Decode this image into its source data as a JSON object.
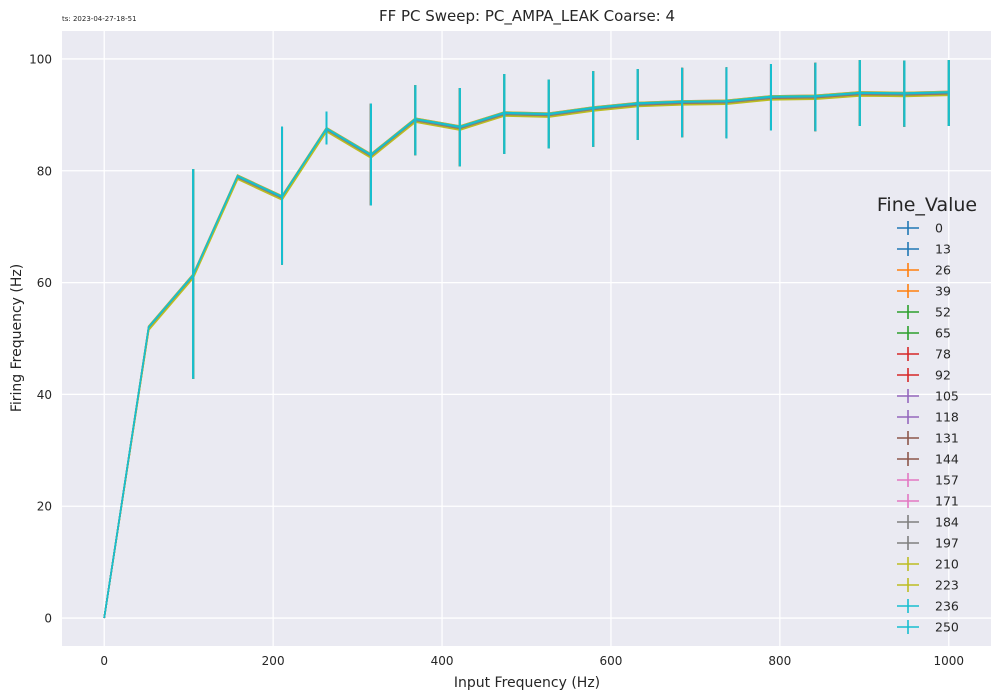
{
  "timestamp": "ts: 2023-04-27-18-51",
  "colors": {
    "background": "#eaeaf2",
    "grid": "#ffffff",
    "palette": [
      "#1f77b4",
      "#ff7f0e",
      "#2ca02c",
      "#d62728",
      "#9467bd",
      "#8c564b",
      "#e377c2",
      "#7f7f7f",
      "#bcbd22",
      "#17becf"
    ]
  },
  "chart_data": {
    "type": "line",
    "title": "FF PC Sweep: PC_AMPA_LEAK Coarse: 4",
    "xlabel": "Input Frequency (Hz)",
    "ylabel": "Firing Frequency (Hz)",
    "xlim": [
      -50,
      1050
    ],
    "ylim": [
      -5,
      105
    ],
    "xticks": [
      0,
      200,
      400,
      600,
      800,
      1000
    ],
    "yticks": [
      0,
      20,
      40,
      60,
      80,
      100
    ],
    "grid": true,
    "legend": {
      "title": "Fine_Value",
      "placement": "right"
    },
    "x": [
      0,
      52.6,
      105.3,
      157.9,
      210.5,
      263.2,
      315.8,
      368.4,
      421.1,
      473.7,
      526.3,
      578.9,
      631.6,
      684.2,
      736.8,
      789.5,
      842.1,
      894.7,
      947.4,
      1000
    ],
    "mean": [
      0,
      52,
      61.3,
      79,
      75.3,
      87.5,
      82.8,
      89.2,
      87.8,
      90.3,
      90.1,
      91.2,
      92,
      92.3,
      92.4,
      93.2,
      93.3,
      93.9,
      93.8,
      94
    ],
    "err_low": [
      0,
      52,
      42.8,
      79,
      63.2,
      84.7,
      73.8,
      82.8,
      80.8,
      83,
      84,
      84.3,
      85.5,
      86,
      85.8,
      87.2,
      87.1,
      88,
      87.9,
      88
    ],
    "err_high": [
      0,
      52,
      80.3,
      79,
      87.9,
      90.6,
      92,
      95.3,
      94.8,
      97.3,
      96.3,
      97.8,
      98.2,
      98.4,
      98.5,
      99.1,
      99.3,
      99.8,
      99.7,
      99.8
    ],
    "series": [
      {
        "name": "0",
        "color_index": 0,
        "offset": -0.2
      },
      {
        "name": "13",
        "color_index": 0,
        "offset": 0
      },
      {
        "name": "26",
        "color_index": 1,
        "offset": -0.4
      },
      {
        "name": "39",
        "color_index": 1,
        "offset": -0.1
      },
      {
        "name": "52",
        "color_index": 2,
        "offset": 0.1
      },
      {
        "name": "65",
        "color_index": 2,
        "offset": -0.2
      },
      {
        "name": "78",
        "color_index": 3,
        "offset": -0.3
      },
      {
        "name": "92",
        "color_index": 3,
        "offset": 0
      },
      {
        "name": "105",
        "color_index": 4,
        "offset": 0.1
      },
      {
        "name": "118",
        "color_index": 4,
        "offset": -0.1
      },
      {
        "name": "131",
        "color_index": 5,
        "offset": -0.2
      },
      {
        "name": "144",
        "color_index": 5,
        "offset": 0
      },
      {
        "name": "157",
        "color_index": 6,
        "offset": 0.2
      },
      {
        "name": "171",
        "color_index": 6,
        "offset": -0.1
      },
      {
        "name": "184",
        "color_index": 7,
        "offset": 0
      },
      {
        "name": "197",
        "color_index": 7,
        "offset": -0.2
      },
      {
        "name": "210",
        "color_index": 8,
        "offset": -0.5
      },
      {
        "name": "223",
        "color_index": 8,
        "offset": 0.2
      },
      {
        "name": "236",
        "color_index": 9,
        "offset": 0.1
      },
      {
        "name": "250",
        "color_index": 9,
        "offset": 0
      }
    ]
  }
}
